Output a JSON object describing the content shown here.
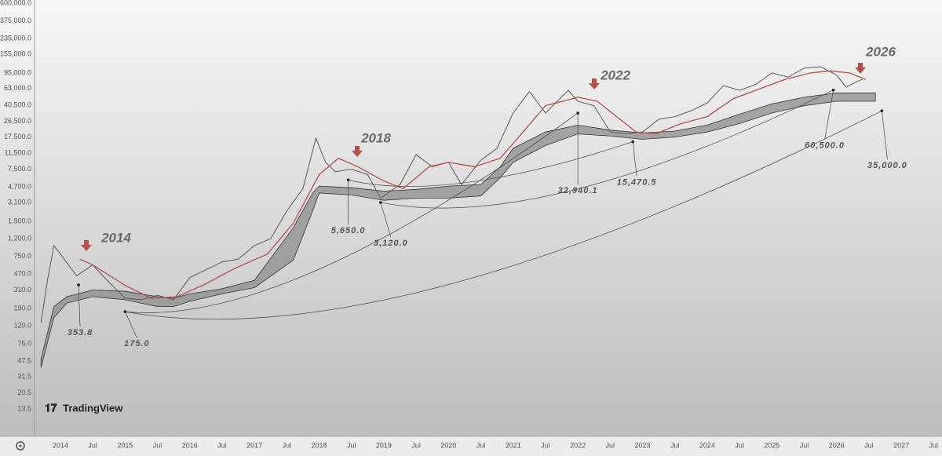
{
  "watermark": "TradingView",
  "chart_data": {
    "type": "line",
    "log_scale": true,
    "xlim": [
      2013.6,
      2027.63
    ],
    "ylim": [
      7.7,
      650000
    ],
    "xticks": [
      2014,
      {
        "value": 2014.5,
        "label": "Jul"
      },
      2015,
      {
        "value": 2015.5,
        "label": "Jul"
      },
      2016,
      {
        "value": 2016.5,
        "label": "Jul"
      },
      2017,
      {
        "value": 2017.5,
        "label": "Jul"
      },
      2018,
      {
        "value": 2018.5,
        "label": "Jul"
      },
      2019,
      {
        "value": 2019.5,
        "label": "Jul"
      },
      2020,
      {
        "value": 2020.5,
        "label": "Jul"
      },
      2021,
      {
        "value": 2021.5,
        "label": "Jul"
      },
      2022,
      {
        "value": 2022.5,
        "label": "Jul"
      },
      2023,
      {
        "value": 2023.5,
        "label": "Jul"
      },
      2024,
      {
        "value": 2024.5,
        "label": "Jul"
      },
      2025,
      {
        "value": 2025.5,
        "label": "Jul"
      },
      2026,
      {
        "value": 2026.5,
        "label": "Jul"
      },
      2027,
      {
        "value": 2027.5,
        "label": "Jul"
      }
    ],
    "yticks": [
      13.5,
      20.5,
      31.5,
      47.5,
      {
        "value": 75,
        "label": "75.0"
      },
      {
        "value": 120,
        "label": "120.0"
      },
      {
        "value": 190,
        "label": "190.0"
      },
      {
        "value": 310,
        "label": "310.0"
      },
      {
        "value": 470,
        "label": "470.0"
      },
      {
        "value": 750,
        "label": "750.0"
      },
      {
        "value": 1200,
        "label": "1,200.0"
      },
      {
        "value": 1900,
        "label": "1,900.0"
      },
      {
        "value": 3100,
        "label": "3,100.0"
      },
      {
        "value": 4700,
        "label": "4,700.0"
      },
      {
        "value": 7500,
        "label": "7,500.0"
      },
      {
        "value": 11500,
        "label": "11,500.0"
      },
      {
        "value": 17500,
        "label": "17,500.0"
      },
      {
        "value": 26500,
        "label": "26,500.0"
      },
      {
        "value": 40500,
        "label": "40,500.0"
      },
      {
        "value": 63000,
        "label": "63,000.0"
      },
      {
        "value": 95000,
        "label": "95,000.0"
      },
      {
        "value": 155000,
        "label": "155,000.0"
      },
      {
        "value": 235000,
        "label": "235,000.0"
      },
      {
        "value": 375000,
        "label": "375,000.0"
      },
      {
        "value": 600000,
        "label": "600,000.0"
      }
    ],
    "series": [
      {
        "color": "#5a5a5a",
        "x": [
          2013.7,
          2013.8,
          2013.9,
          2014.0,
          2014.25,
          2014.5,
          2014.75,
          2015.0,
          2015.25,
          2015.5,
          2015.75,
          2016.0,
          2016.5,
          2016.75,
          2017.0,
          2017.25,
          2017.5,
          2017.75,
          2017.95,
          2018.1,
          2018.25,
          2018.5,
          2018.75,
          2018.95,
          2019.25,
          2019.5,
          2019.75,
          2020.0,
          2020.2,
          2020.5,
          2020.75,
          2021.0,
          2021.25,
          2021.5,
          2021.85,
          2022.0,
          2022.25,
          2022.5,
          2022.75,
          2023.0,
          2023.25,
          2023.5,
          2023.75,
          2024.0,
          2024.25,
          2024.5,
          2024.75,
          2025.0,
          2025.25,
          2025.5,
          2025.75,
          2026.0,
          2026.15,
          2026.3,
          2026.4
        ],
        "values": [
          130,
          400,
          1000,
          800,
          450,
          600,
          380,
          250,
          240,
          270,
          240,
          430,
          650,
          700,
          1000,
          1200,
          2500,
          4500,
          17000,
          9000,
          7000,
          7500,
          6500,
          3500,
          5000,
          11000,
          8000,
          9000,
          5000,
          9500,
          13000,
          33000,
          58000,
          33000,
          60000,
          45000,
          40000,
          20000,
          19000,
          20000,
          28000,
          30000,
          35000,
          43000,
          68000,
          60000,
          70000,
          95000,
          85000,
          108000,
          112000,
          90000,
          65000,
          75000,
          80000
        ]
      },
      {
        "color": "#b5504f",
        "x": [
          2014.3,
          2014.5,
          2015.0,
          2015.4,
          2015.8,
          2016.2,
          2016.7,
          2017.2,
          2017.6,
          2018.0,
          2018.3,
          2018.6,
          2019.0,
          2019.3,
          2019.7,
          2020.0,
          2020.4,
          2020.8,
          2021.1,
          2021.5,
          2022.0,
          2022.3,
          2022.6,
          2022.9,
          2023.2,
          2023.6,
          2024.0,
          2024.4,
          2024.8,
          2025.2,
          2025.6,
          2025.9,
          2026.2,
          2026.45
        ],
        "values": [
          700,
          600,
          350,
          250,
          260,
          350,
          550,
          800,
          1800,
          6500,
          10000,
          8000,
          5500,
          4500,
          8000,
          9000,
          8000,
          10000,
          18000,
          40000,
          50000,
          45000,
          30000,
          20000,
          19000,
          25000,
          30000,
          48000,
          62000,
          80000,
          95000,
          100000,
          95000,
          80000
        ]
      }
    ],
    "band": {
      "color": "#8c8c8c",
      "x": [
        2013.7,
        2013.9,
        2014.1,
        2014.5,
        2015.0,
        2015.5,
        2015.75,
        2016.0,
        2016.5,
        2017.0,
        2017.6,
        2017.9,
        2018.0,
        2018.5,
        2019.0,
        2019.5,
        2020.0,
        2020.5,
        2020.8,
        2021.0,
        2021.5,
        2022.0,
        2022.5,
        2023.0,
        2023.5,
        2024.0,
        2024.5,
        2025.0,
        2025.5,
        2026.0,
        2026.6
      ],
      "lower": [
        40,
        150,
        220,
        260,
        240,
        200,
        200,
        230,
        280,
        330,
        680,
        2500,
        4000,
        3800,
        3300,
        3500,
        3500,
        3700,
        6000,
        9000,
        14000,
        19000,
        18000,
        16500,
        17500,
        20000,
        25000,
        33000,
        40000,
        45000,
        45000
      ],
      "upper": [
        50,
        200,
        260,
        310,
        300,
        260,
        250,
        280,
        320,
        400,
        1600,
        4000,
        4800,
        4600,
        4200,
        4400,
        4800,
        5000,
        8000,
        13000,
        20000,
        24000,
        21000,
        19500,
        20500,
        24000,
        32000,
        42000,
        50000,
        56000,
        56000
      ]
    },
    "annotations": [
      {
        "text": "2014"
      },
      {
        "text": "2018"
      },
      {
        "text": "2022"
      },
      {
        "text": "2026"
      }
    ],
    "price_labels": [
      {
        "x": 2014.28,
        "value": 353.8,
        "label": "353.8"
      },
      {
        "x": 2015.0,
        "value": 175,
        "label": "175.0"
      },
      {
        "x": 2018.45,
        "value": 5650,
        "label": "5,650.0"
      },
      {
        "x": 2018.95,
        "value": 3120,
        "label": "3,120.0"
      },
      {
        "x": 2022.0,
        "value": 32940.1,
        "label": "32,940.1"
      },
      {
        "x": 2022.85,
        "value": 15470.5,
        "label": "15,470.5"
      },
      {
        "x": 2025.95,
        "value": 60500,
        "label": "60,500.0"
      },
      {
        "x": 2026.7,
        "value": 35000,
        "label": "35,000.0"
      }
    ]
  }
}
